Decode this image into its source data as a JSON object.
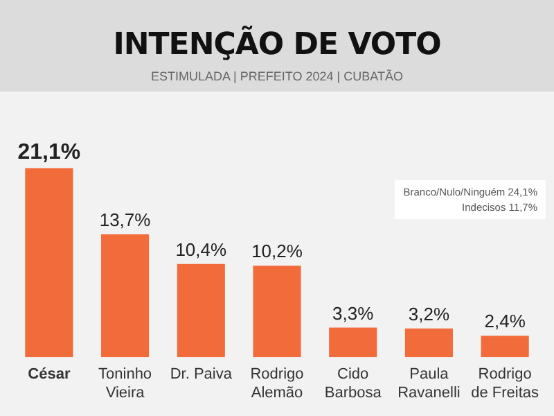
{
  "chart_data": {
    "type": "bar",
    "title": "INTENÇÃO DE VOTO",
    "subtitle": "ESTIMULADA | PREFEITO 2024 | CUBATÃO",
    "categories": [
      "César",
      "Toninho\nVieira",
      "Dr. Paiva",
      "Rodrigo\nAlemão",
      "Cido\nBarbosa",
      "Paula\nRavanelli",
      "Rodrigo\nde Freitas"
    ],
    "values": [
      21.1,
      13.7,
      10.4,
      10.2,
      3.3,
      3.2,
      2.4
    ],
    "value_labels": [
      "21,1%",
      "13,7%",
      "10,4%",
      "10,2%",
      "3,3%",
      "3,2%",
      "2,4%"
    ],
    "color": "#f26b3a",
    "annotations": [
      "Branco/Nulo/Ninguém 24,1%",
      "Indecisos 11,7%"
    ],
    "grid": false,
    "legend": false
  }
}
